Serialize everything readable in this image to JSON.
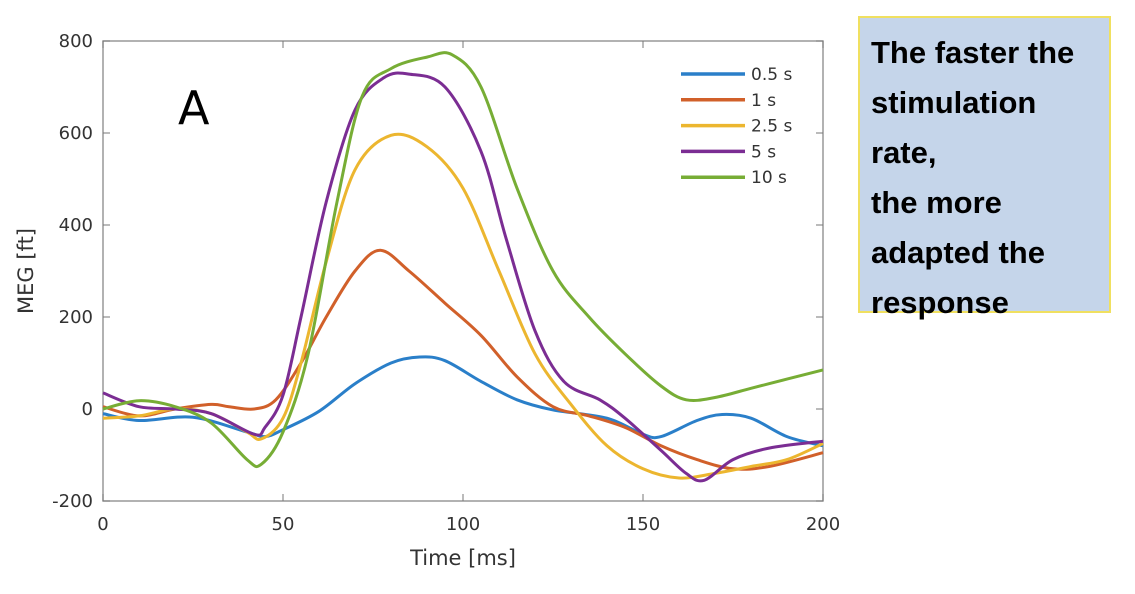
{
  "chart_data": {
    "type": "line",
    "panel_label": "A",
    "xlabel": "Time [ms]",
    "ylabel": "MEG [ft]",
    "xlim": [
      0,
      200
    ],
    "ylim": [
      -200,
      800
    ],
    "xticks": [
      0,
      50,
      100,
      150,
      200
    ],
    "yticks": [
      -200,
      0,
      200,
      400,
      600,
      800
    ],
    "grid": false,
    "legend_position": "top-right",
    "series": [
      {
        "name": "0.5 s",
        "color": "#2a7fc9",
        "points": [
          [
            0,
            -10
          ],
          [
            10,
            -25
          ],
          [
            25,
            -18
          ],
          [
            40,
            -50
          ],
          [
            45,
            -60
          ],
          [
            50,
            -45
          ],
          [
            60,
            -5
          ],
          [
            70,
            55
          ],
          [
            80,
            100
          ],
          [
            88,
            113
          ],
          [
            95,
            105
          ],
          [
            105,
            60
          ],
          [
            115,
            20
          ],
          [
            125,
            -2
          ],
          [
            140,
            -20
          ],
          [
            150,
            -55
          ],
          [
            155,
            -60
          ],
          [
            165,
            -25
          ],
          [
            172,
            -12
          ],
          [
            180,
            -20
          ],
          [
            190,
            -60
          ],
          [
            200,
            -80
          ]
        ]
      },
      {
        "name": "1 s",
        "color": "#d1602a",
        "points": [
          [
            0,
            5
          ],
          [
            10,
            -15
          ],
          [
            20,
            0
          ],
          [
            30,
            10
          ],
          [
            35,
            5
          ],
          [
            42,
            0
          ],
          [
            48,
            20
          ],
          [
            55,
            100
          ],
          [
            62,
            200
          ],
          [
            70,
            300
          ],
          [
            77,
            345
          ],
          [
            85,
            300
          ],
          [
            95,
            230
          ],
          [
            105,
            160
          ],
          [
            115,
            70
          ],
          [
            125,
            5
          ],
          [
            135,
            -15
          ],
          [
            145,
            -40
          ],
          [
            155,
            -80
          ],
          [
            165,
            -110
          ],
          [
            175,
            -130
          ],
          [
            185,
            -125
          ],
          [
            200,
            -95
          ]
        ]
      },
      {
        "name": "2.5 s",
        "color": "#ecb62f",
        "points": [
          [
            0,
            -20
          ],
          [
            10,
            -15
          ],
          [
            20,
            0
          ],
          [
            30,
            -10
          ],
          [
            40,
            -50
          ],
          [
            44,
            -65
          ],
          [
            50,
            -20
          ],
          [
            55,
            100
          ],
          [
            62,
            320
          ],
          [
            70,
            520
          ],
          [
            80,
            595
          ],
          [
            90,
            570
          ],
          [
            100,
            480
          ],
          [
            110,
            300
          ],
          [
            120,
            120
          ],
          [
            130,
            10
          ],
          [
            140,
            -80
          ],
          [
            150,
            -130
          ],
          [
            160,
            -150
          ],
          [
            170,
            -140
          ],
          [
            180,
            -125
          ],
          [
            190,
            -110
          ],
          [
            200,
            -75
          ]
        ]
      },
      {
        "name": "5 s",
        "color": "#7b2d93",
        "points": [
          [
            0,
            35
          ],
          [
            10,
            5
          ],
          [
            20,
            0
          ],
          [
            30,
            -10
          ],
          [
            42,
            -55
          ],
          [
            45,
            -40
          ],
          [
            50,
            30
          ],
          [
            55,
            200
          ],
          [
            62,
            450
          ],
          [
            70,
            650
          ],
          [
            78,
            720
          ],
          [
            85,
            728
          ],
          [
            95,
            700
          ],
          [
            105,
            560
          ],
          [
            112,
            370
          ],
          [
            120,
            170
          ],
          [
            128,
            60
          ],
          [
            138,
            20
          ],
          [
            145,
            -20
          ],
          [
            155,
            -90
          ],
          [
            162,
            -140
          ],
          [
            167,
            -155
          ],
          [
            175,
            -110
          ],
          [
            185,
            -85
          ],
          [
            200,
            -70
          ]
        ]
      },
      {
        "name": "10 s",
        "color": "#77ad35",
        "points": [
          [
            0,
            0
          ],
          [
            10,
            18
          ],
          [
            20,
            5
          ],
          [
            30,
            -30
          ],
          [
            40,
            -110
          ],
          [
            44,
            -120
          ],
          [
            50,
            -50
          ],
          [
            57,
            120
          ],
          [
            65,
            450
          ],
          [
            72,
            680
          ],
          [
            80,
            740
          ],
          [
            90,
            765
          ],
          [
            97,
            770
          ],
          [
            105,
            700
          ],
          [
            115,
            480
          ],
          [
            125,
            300
          ],
          [
            135,
            200
          ],
          [
            145,
            120
          ],
          [
            155,
            50
          ],
          [
            162,
            20
          ],
          [
            170,
            25
          ],
          [
            180,
            45
          ],
          [
            190,
            65
          ],
          [
            200,
            85
          ]
        ]
      }
    ]
  },
  "annotation": {
    "lines": [
      "The faster the",
      "stimulation",
      "rate,",
      "the more",
      "adapted the",
      "response"
    ]
  }
}
